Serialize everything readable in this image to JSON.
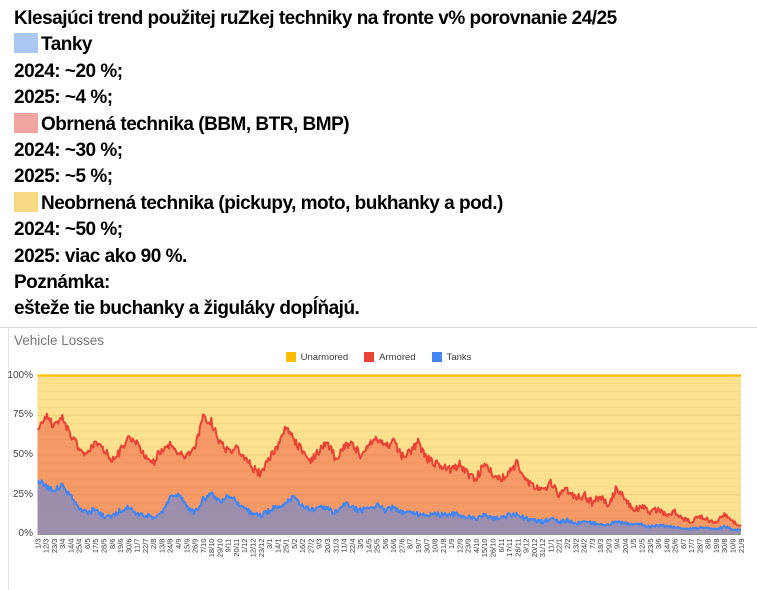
{
  "post": {
    "title": "Klesajúci trend použitej ruZkej techniky na fronte v% porovnanie 24/25",
    "items": [
      {
        "label": "Tanky",
        "swatch_color": "#abc7f3",
        "stat_2024": "2024: ~20 %;",
        "stat_2025": "2025: ~4 %;"
      },
      {
        "label": "Obrnená technika (BBM, BTR, BMP)",
        "swatch_color": "#f2a4a1",
        "stat_2024": "2024: ~30 %;",
        "stat_2025": "2025: ~5 %;"
      },
      {
        "label": "Neobrnená technika (pickupy, moto, bukhanky a pod.)",
        "swatch_color": "#f8da84",
        "stat_2024": "2024: ~50 %;",
        "stat_2025": "2025: viac ako 90 %."
      }
    ],
    "note_label": "Poznámka:",
    "note_text": "ešteže tie buchanky a žiguláky dopĺňajú."
  },
  "chart": {
    "title": "Vehicle Losses",
    "legend": [
      {
        "label": "Unarmored",
        "color": "#FBBC04"
      },
      {
        "label": "Armored",
        "color": "#EA4335"
      },
      {
        "label": "Tanks",
        "color": "#4285F4"
      }
    ],
    "y_ticks": [
      "100%",
      "75%",
      "50%",
      "25%",
      "0%"
    ]
  },
  "chart_data": {
    "type": "area",
    "stacked": true,
    "title": "Vehicle Losses",
    "ylabel": "",
    "xlabel": "",
    "ylim": [
      0,
      100
    ],
    "grid": true,
    "legend_position": "top-center",
    "categories": [
      "1/3",
      "12/3",
      "23/3",
      "3/4",
      "14/4",
      "25/4",
      "6/5",
      "17/5",
      "28/5",
      "8/6",
      "19/6",
      "30/6",
      "11/7",
      "22/7",
      "2/8",
      "13/8",
      "24/8",
      "4/9",
      "15/9",
      "26/9",
      "7/10",
      "18/10",
      "29/10",
      "9/11",
      "20/11",
      "1/12",
      "12/12",
      "23/12",
      "3/1",
      "14/1",
      "25/1",
      "5/2",
      "16/2",
      "27/2",
      "9/3",
      "20/3",
      "31/3",
      "11/4",
      "22/4",
      "3/5",
      "14/5",
      "25/5",
      "5/6",
      "16/6",
      "27/6",
      "8/7",
      "19/7",
      "30/7",
      "10/8",
      "21/8",
      "1/9",
      "12/9",
      "23/9",
      "4/10",
      "15/10",
      "26/10",
      "6/11",
      "17/11",
      "28/11",
      "9/12",
      "20/12",
      "31/12",
      "11/1",
      "22/1",
      "2/2",
      "13/2",
      "24/2",
      "7/3",
      "18/3",
      "29/3",
      "9/4",
      "20/4",
      "1/5",
      "12/5",
      "23/5",
      "3/6",
      "14/6",
      "25/6",
      "6/7",
      "17/7",
      "28/7",
      "8/8",
      "19/8",
      "30/8",
      "10/9",
      "21/9"
    ],
    "series": [
      {
        "name": "Tanks",
        "color": "#4285F4",
        "values": [
          35,
          30,
          28,
          31,
          24,
          17,
          13,
          16,
          12,
          11,
          15,
          17,
          13,
          12,
          11,
          14,
          23,
          25,
          18,
          14,
          22,
          26,
          20,
          24,
          21,
          16,
          13,
          12,
          15,
          18,
          20,
          24,
          18,
          15,
          18,
          16,
          14,
          20,
          17,
          15,
          16,
          19,
          15,
          17,
          14,
          15,
          13,
          12,
          14,
          12,
          13,
          12,
          11,
          10,
          12,
          10,
          11,
          12,
          13,
          10,
          9,
          8,
          10,
          8,
          9,
          7,
          8,
          7,
          7,
          6,
          8,
          7,
          6,
          6,
          5,
          6,
          5,
          5,
          4,
          4,
          4,
          4,
          3,
          5,
          3,
          3
        ]
      },
      {
        "name": "Armored",
        "color": "#EA4335",
        "values": [
          32,
          45,
          40,
          42,
          38,
          38,
          37,
          42,
          42,
          36,
          37,
          45,
          44,
          38,
          34,
          40,
          34,
          27,
          30,
          40,
          51,
          45,
          38,
          28,
          34,
          32,
          29,
          26,
          33,
          37,
          48,
          36,
          34,
          32,
          34,
          42,
          34,
          35,
          41,
          35,
          42,
          41,
          40,
          41,
          36,
          37,
          45,
          36,
          31,
          30,
          27,
          32,
          27,
          25,
          33,
          28,
          24,
          28,
          32,
          25,
          21,
          20,
          22,
          17,
          19,
          15,
          17,
          13,
          16,
          12,
          22,
          15,
          9,
          12,
          9,
          10,
          7,
          9,
          6,
          4,
          8,
          5,
          5,
          7,
          5,
          3
        ]
      },
      {
        "name": "Unarmored",
        "color": "#FBBC04",
        "values": [
          33,
          25,
          32,
          27,
          38,
          45,
          50,
          42,
          46,
          53,
          48,
          38,
          43,
          50,
          55,
          46,
          43,
          48,
          52,
          46,
          27,
          29,
          42,
          48,
          45,
          52,
          58,
          62,
          52,
          45,
          32,
          40,
          48,
          53,
          48,
          42,
          52,
          45,
          42,
          50,
          42,
          40,
          45,
          42,
          50,
          48,
          42,
          52,
          55,
          58,
          60,
          56,
          62,
          65,
          55,
          62,
          65,
          60,
          55,
          65,
          70,
          72,
          68,
          75,
          72,
          78,
          75,
          80,
          77,
          82,
          70,
          78,
          85,
          82,
          86,
          84,
          88,
          86,
          90,
          92,
          88,
          91,
          92,
          88,
          92,
          94
        ]
      }
    ]
  }
}
